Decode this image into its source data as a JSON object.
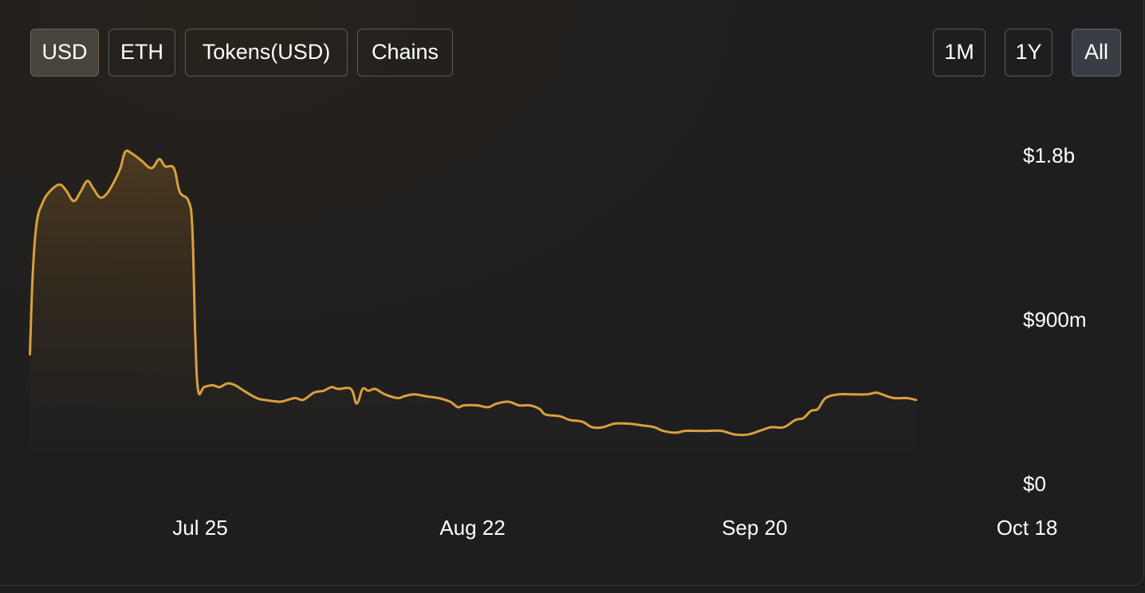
{
  "currency_tabs": [
    {
      "label": "USD",
      "active": true
    },
    {
      "label": "ETH",
      "active": false
    },
    {
      "label": "Tokens(USD)",
      "active": false
    },
    {
      "label": "Chains",
      "active": false
    }
  ],
  "range_tabs": [
    {
      "label": "1M",
      "active": false
    },
    {
      "label": "1Y",
      "active": false
    },
    {
      "label": "All",
      "active": true
    }
  ],
  "colors": {
    "line": "#d8a03e",
    "fill_top": "#5a4220",
    "text": "#ffffff"
  },
  "chart_data": {
    "type": "area",
    "y_ticks": [
      {
        "label": "$1.8b",
        "value": 1800000000
      },
      {
        "label": "$900m",
        "value": 900000000
      },
      {
        "label": "$0",
        "value": 0
      }
    ],
    "x_ticks": [
      {
        "label": "Jul 25",
        "date": "2023-07-25"
      },
      {
        "label": "Aug 22",
        "date": "2023-08-22"
      },
      {
        "label": "Sep 20",
        "date": "2023-09-20"
      },
      {
        "label": "Oct 18",
        "date": "2023-10-18"
      }
    ],
    "ylim": [
      0,
      1800000000
    ],
    "grid": false,
    "series": [
      {
        "values_b": [
          [
            -17.5,
            0.71
          ],
          [
            -17.2,
            1.16
          ],
          [
            -16.8,
            1.43
          ],
          [
            -16.2,
            1.54
          ],
          [
            -15.5,
            1.6
          ],
          [
            -14.5,
            1.64
          ],
          [
            -13.8,
            1.61
          ],
          [
            -13.0,
            1.55
          ],
          [
            -12.3,
            1.6
          ],
          [
            -11.6,
            1.66
          ],
          [
            -11.0,
            1.62
          ],
          [
            -10.3,
            1.57
          ],
          [
            -9.6,
            1.59
          ],
          [
            -8.8,
            1.66
          ],
          [
            -8.2,
            1.73
          ],
          [
            -7.7,
            1.82
          ],
          [
            -7.0,
            1.81
          ],
          [
            -6.0,
            1.77
          ],
          [
            -5.0,
            1.73
          ],
          [
            -4.2,
            1.78
          ],
          [
            -3.6,
            1.74
          ],
          [
            -2.7,
            1.73
          ],
          [
            -2.1,
            1.6
          ],
          [
            -1.2,
            1.55
          ],
          [
            -0.8,
            1.4
          ],
          [
            -0.5,
            0.81
          ],
          [
            -0.2,
            0.51
          ],
          [
            0.4,
            0.53
          ],
          [
            1.3,
            0.54
          ],
          [
            2.0,
            0.53
          ],
          [
            2.8,
            0.55
          ],
          [
            3.6,
            0.54
          ],
          [
            4.5,
            0.51
          ],
          [
            5.8,
            0.47
          ],
          [
            6.6,
            0.46
          ],
          [
            8.2,
            0.45
          ],
          [
            9.0,
            0.46
          ],
          [
            9.8,
            0.47
          ],
          [
            10.6,
            0.46
          ],
          [
            11.7,
            0.5
          ],
          [
            12.7,
            0.51
          ],
          [
            13.5,
            0.53
          ],
          [
            14.2,
            0.52
          ],
          [
            15.5,
            0.52
          ],
          [
            16.1,
            0.44
          ],
          [
            16.7,
            0.52
          ],
          [
            17.3,
            0.51
          ],
          [
            18.0,
            0.52
          ],
          [
            19.0,
            0.49
          ],
          [
            20.3,
            0.47
          ],
          [
            21.0,
            0.48
          ],
          [
            22.0,
            0.49
          ],
          [
            23.2,
            0.48
          ],
          [
            24.5,
            0.47
          ],
          [
            25.7,
            0.45
          ],
          [
            26.5,
            0.42
          ],
          [
            27.1,
            0.43
          ],
          [
            28.5,
            0.43
          ],
          [
            29.6,
            0.42
          ],
          [
            30.5,
            0.44
          ],
          [
            31.7,
            0.45
          ],
          [
            32.8,
            0.43
          ],
          [
            33.9,
            0.43
          ],
          [
            34.9,
            0.41
          ],
          [
            35.5,
            0.38
          ],
          [
            37.0,
            0.37
          ],
          [
            38.0,
            0.35
          ],
          [
            39.3,
            0.34
          ],
          [
            40.3,
            0.31
          ],
          [
            41.4,
            0.31
          ],
          [
            42.6,
            0.33
          ],
          [
            44.0,
            0.33
          ],
          [
            45.5,
            0.32
          ],
          [
            46.7,
            0.31
          ],
          [
            47.6,
            0.29
          ],
          [
            48.9,
            0.28
          ],
          [
            49.8,
            0.29
          ],
          [
            51.0,
            0.29
          ],
          [
            52.3,
            0.29
          ],
          [
            53.6,
            0.29
          ],
          [
            55.0,
            0.27
          ],
          [
            56.3,
            0.27
          ],
          [
            57.5,
            0.29
          ],
          [
            58.7,
            0.31
          ],
          [
            60.0,
            0.31
          ],
          [
            61.2,
            0.35
          ],
          [
            62.0,
            0.36
          ],
          [
            62.8,
            0.4
          ],
          [
            63.5,
            0.41
          ],
          [
            64.3,
            0.47
          ],
          [
            65.6,
            0.49
          ],
          [
            67.1,
            0.49
          ],
          [
            68.5,
            0.49
          ],
          [
            69.5,
            0.5
          ],
          [
            70.1,
            0.49
          ],
          [
            71.3,
            0.47
          ],
          [
            72.6,
            0.47
          ],
          [
            73.6,
            0.46
          ]
        ]
      }
    ]
  }
}
